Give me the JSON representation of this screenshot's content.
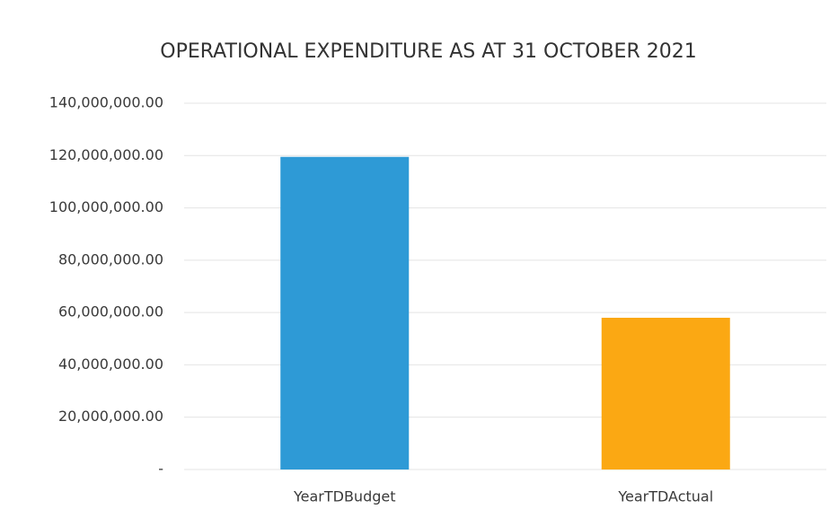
{
  "chart_data": {
    "type": "bar",
    "title": "OPERATIONAL EXPENDITURE AS AT 31 OCTOBER 2021",
    "categories": [
      "YearTDBudget",
      "YearTDActual"
    ],
    "values": [
      119500000,
      58000000
    ],
    "colors": [
      "#2e9ad6",
      "#fba813"
    ],
    "ylim": [
      0,
      140000000
    ],
    "yticks": [
      {
        "value": 0,
        "label": "-"
      },
      {
        "value": 20000000,
        "label": "20,000,000.00"
      },
      {
        "value": 40000000,
        "label": "40,000,000.00"
      },
      {
        "value": 60000000,
        "label": "60,000,000.00"
      },
      {
        "value": 80000000,
        "label": "80,000,000.00"
      },
      {
        "value": 100000000,
        "label": "100,000,000.00"
      },
      {
        "value": 120000000,
        "label": "120,000,000.00"
      },
      {
        "value": 140000000,
        "label": "140,000,000.00"
      }
    ],
    "grid": true
  }
}
